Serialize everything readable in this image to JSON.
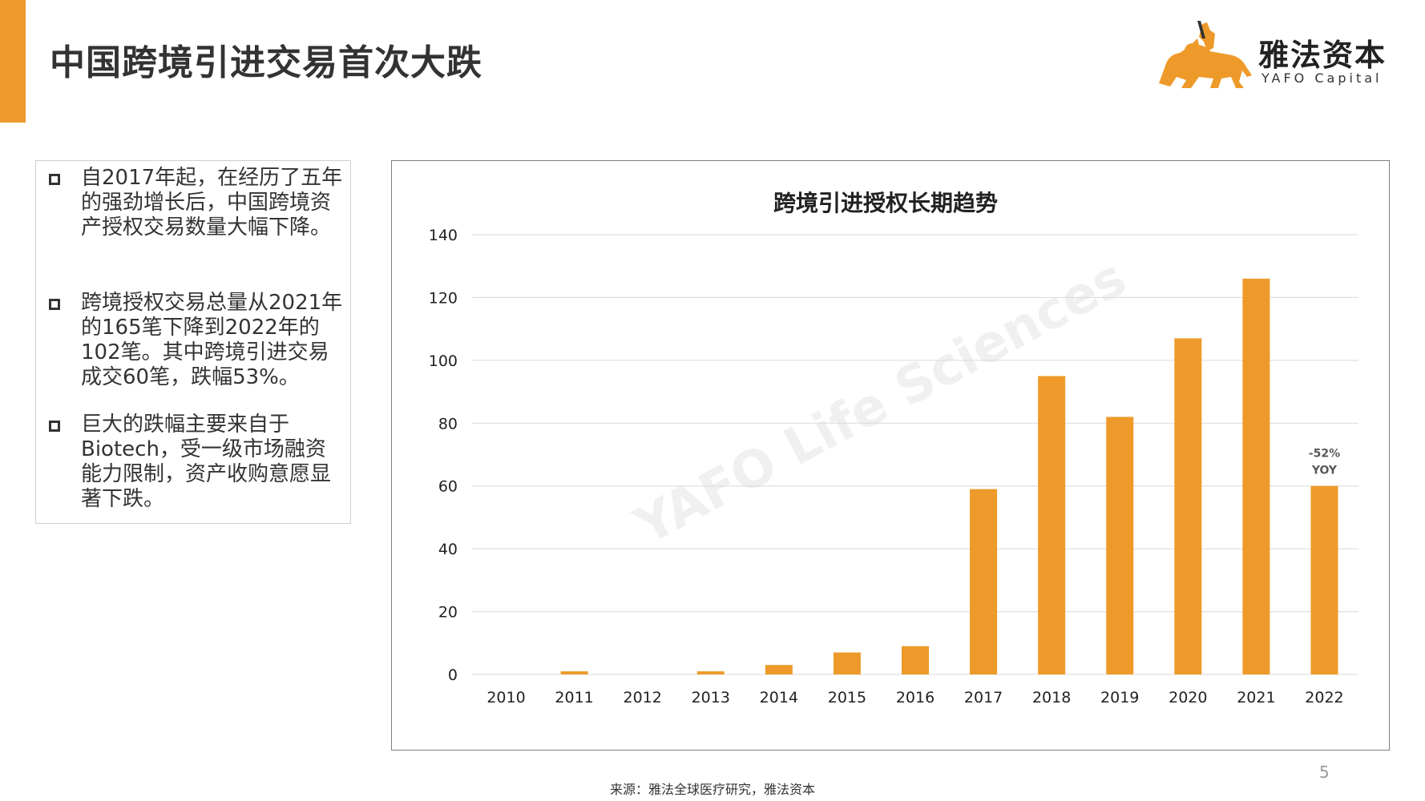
{
  "slide": {
    "title": "中国跨境引进交易首次大跌",
    "accent_color": "#EE9A2A",
    "page_number": "5",
    "source": "来源：雅法全球医疗研究，雅法资本"
  },
  "logo": {
    "name_cn": "雅法资本",
    "name_en": "YAFO Capital",
    "icon": "lion-with-rider-icon",
    "color": "#EE9A2A"
  },
  "bullets": [
    {
      "text": "自2017年起，在经历了五年的强劲增长后，中国跨境资产授权交易数量大幅下降。"
    },
    {
      "text": "跨境授权交易总量从2021年的165笔下降到2022年的102笔。其中跨境引进交易成交60笔，跌幅53%。"
    },
    {
      "text": "巨大的跌幅主要来自于Biotech，受一级市场融资能力限制，资产收购意愿显著下跌。"
    }
  ],
  "chart_data": {
    "type": "bar",
    "title": "跨境引进授权长期趋势",
    "categories": [
      "2010",
      "2011",
      "2012",
      "2013",
      "2014",
      "2015",
      "2016",
      "2017",
      "2018",
      "2019",
      "2020",
      "2021",
      "2022"
    ],
    "values": [
      0,
      1,
      0,
      1,
      3,
      7,
      9,
      59,
      95,
      82,
      107,
      126,
      60
    ],
    "ylim": [
      0,
      140
    ],
    "yticks": [
      0,
      20,
      40,
      60,
      80,
      100,
      120,
      140
    ],
    "xlabel": "",
    "ylabel": "",
    "grid": true,
    "bar_color": "#EE9A2A",
    "annotation": {
      "category": "2022",
      "lines": [
        "-52%",
        "YOY"
      ]
    },
    "watermark": "YAFO Life Sciences"
  }
}
